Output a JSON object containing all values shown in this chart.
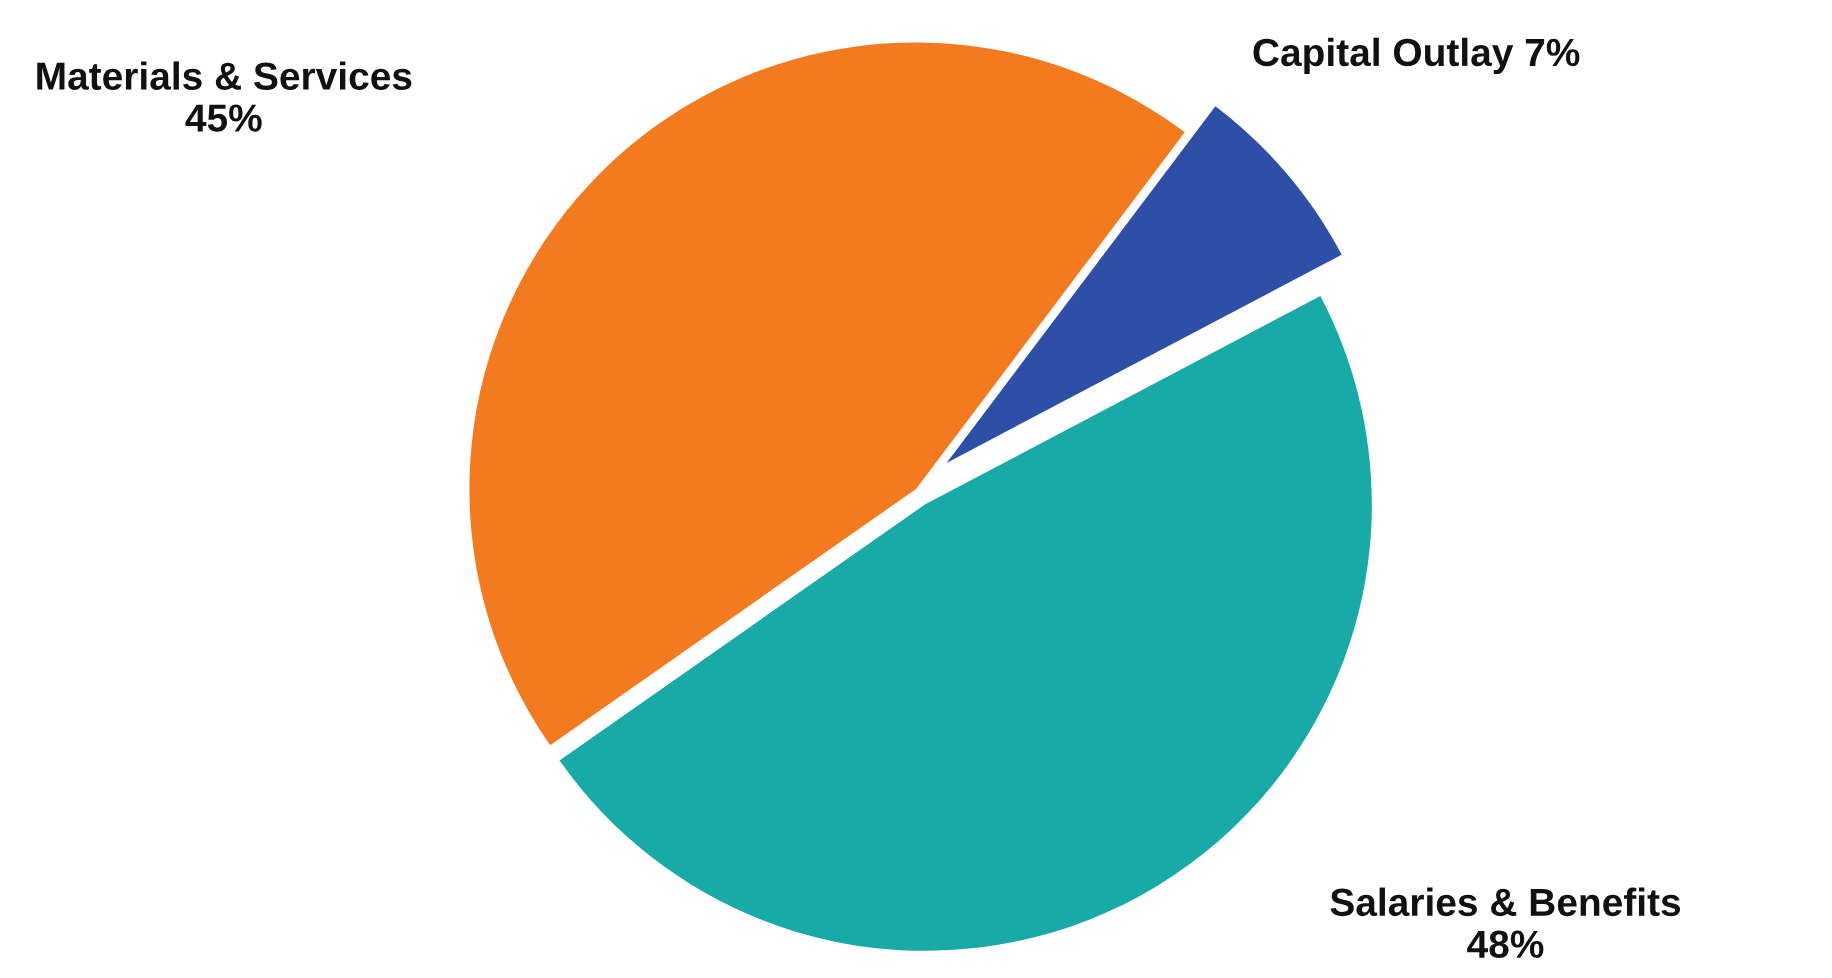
{
  "chart_data": {
    "type": "pie",
    "categories": [
      "Capital Outlay",
      "Salaries & Benefits",
      "Materials & Services"
    ],
    "values": [
      7,
      48,
      45
    ],
    "value_labels": [
      "7%",
      "48%",
      "45%"
    ],
    "colors": [
      "#2e4fa8",
      "#17aaa6",
      "#f47a20"
    ]
  }
}
